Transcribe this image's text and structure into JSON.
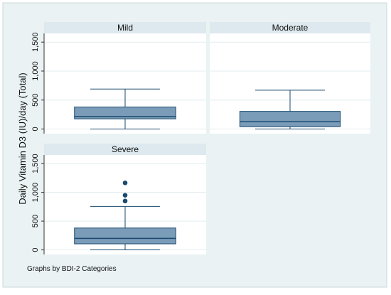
{
  "chart_data": {
    "type": "boxplot",
    "ylabel": "Daily Vitamin D3 (IU)/day (Total)",
    "ylim": [
      -80,
      1650
    ],
    "yticks": [
      0,
      500,
      1000,
      1500
    ],
    "ytick_labels": [
      "0",
      "500",
      "1,000",
      "1,500"
    ],
    "grid": true,
    "note": "Graphs by BDI-2 Categories",
    "colors": {
      "box_fill": "#7a9cb8",
      "box_stroke": "#1a4a6e",
      "outlier": "#1a4a6e",
      "panel_header": "#dde9ef",
      "background": "#eaf2f3",
      "grid": "#e3eced"
    },
    "panels": [
      {
        "name": "Mild",
        "min": 0,
        "q1": 175,
        "median": 215,
        "q3": 380,
        "max": 690,
        "outliers": []
      },
      {
        "name": "Moderate",
        "min": 0,
        "q1": 40,
        "median": 125,
        "q3": 305,
        "max": 670,
        "outliers": []
      },
      {
        "name": "Severe",
        "min": 0,
        "q1": 105,
        "median": 200,
        "q3": 380,
        "max": 755,
        "outliers": [
          850,
          950,
          1165
        ]
      }
    ]
  }
}
